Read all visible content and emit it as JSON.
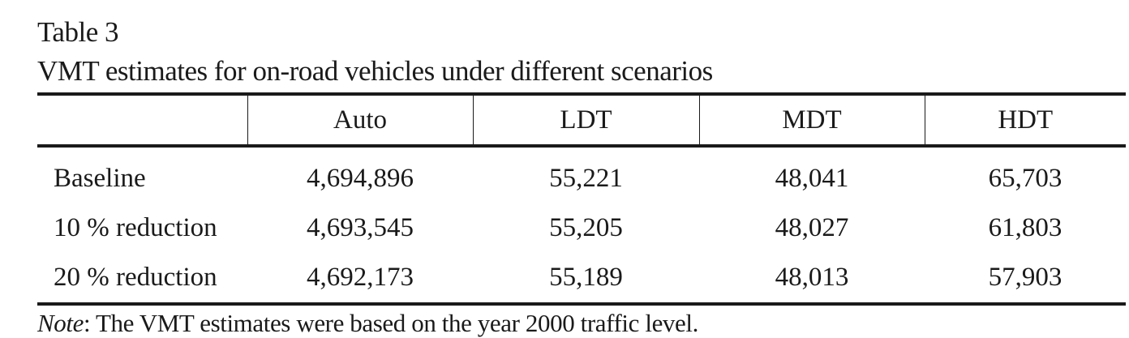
{
  "caption": {
    "label": "Table 3",
    "title": "VMT estimates for on-road vehicles under different scenarios"
  },
  "table": {
    "headers": [
      "",
      "Auto",
      "LDT",
      "MDT",
      "HDT"
    ],
    "rows": [
      {
        "label": "Baseline",
        "values": [
          "4,694,896",
          "55,221",
          "48,041",
          "65,703"
        ]
      },
      {
        "label": "10 % reduction",
        "values": [
          "4,693,545",
          "55,205",
          "48,027",
          "61,803"
        ]
      },
      {
        "label": "20 % reduction",
        "values": [
          "4,692,173",
          "55,189",
          "48,013",
          "57,903"
        ]
      }
    ]
  },
  "note": {
    "label": "Note",
    "text": ": The VMT estimates were based on the year 2000 traffic level."
  }
}
